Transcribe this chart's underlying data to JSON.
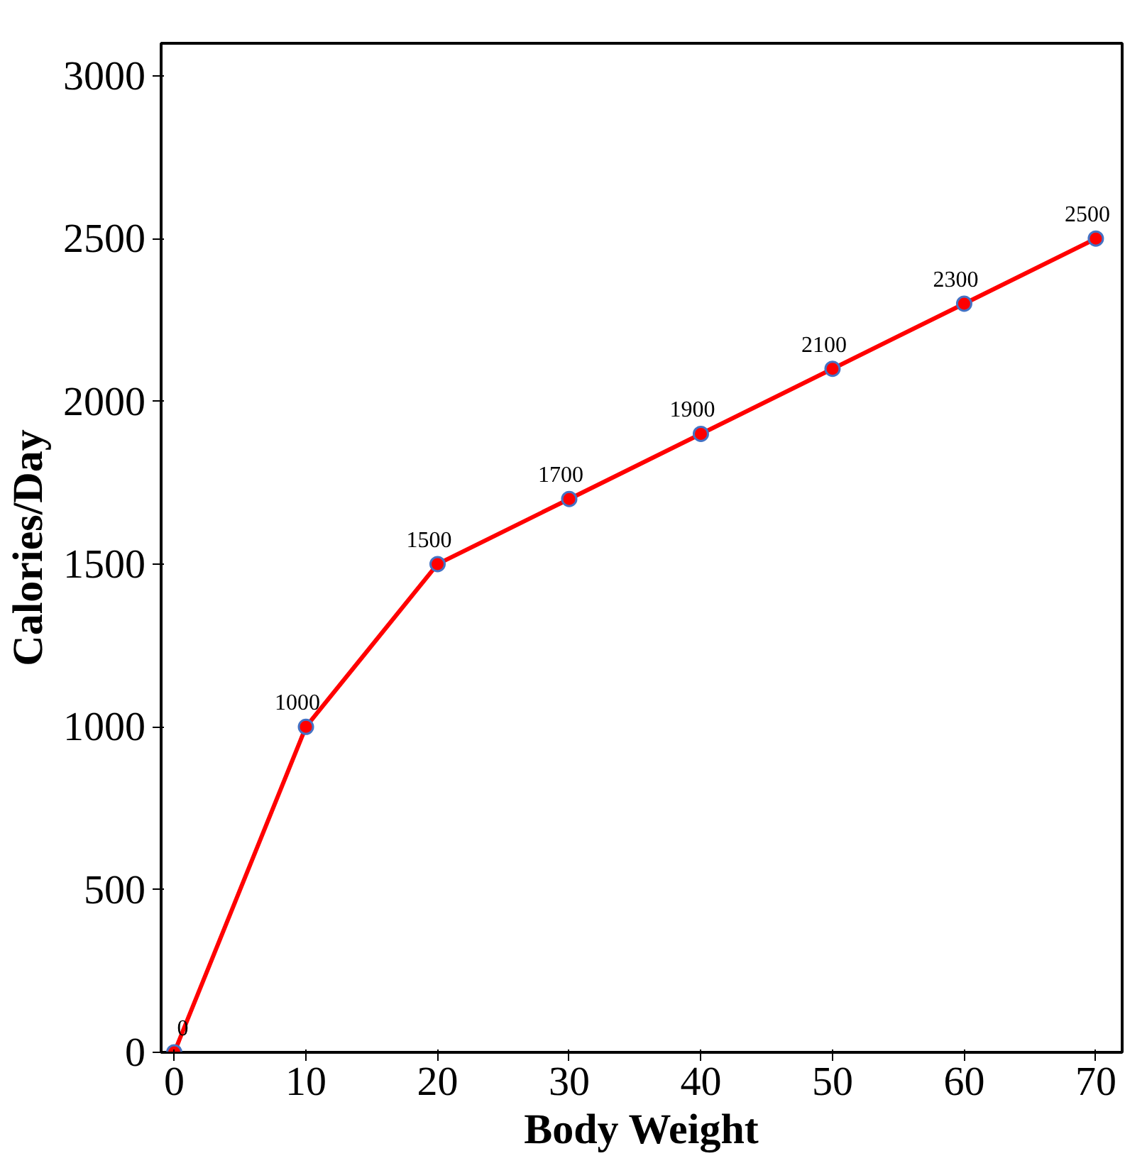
{
  "chart_data": {
    "type": "line",
    "xlabel": "Body Weight",
    "ylabel": "Calories/Day",
    "x": [
      0,
      10,
      20,
      30,
      40,
      50,
      60,
      70
    ],
    "series": [
      {
        "color": "#ff0000",
        "values": [
          0,
          1000,
          1500,
          1700,
          1900,
          2100,
          2300,
          2500
        ]
      }
    ],
    "xlim": [
      -1,
      72
    ],
    "xticks": [
      0,
      10,
      20,
      30,
      40,
      50,
      60,
      70
    ],
    "ylim": [
      0,
      3100
    ],
    "yticks": [
      0,
      500,
      1000,
      1500,
      2000,
      2500,
      3000
    ],
    "grid": false,
    "marker": "circle",
    "line_style": "solid",
    "data_labels": true
  }
}
